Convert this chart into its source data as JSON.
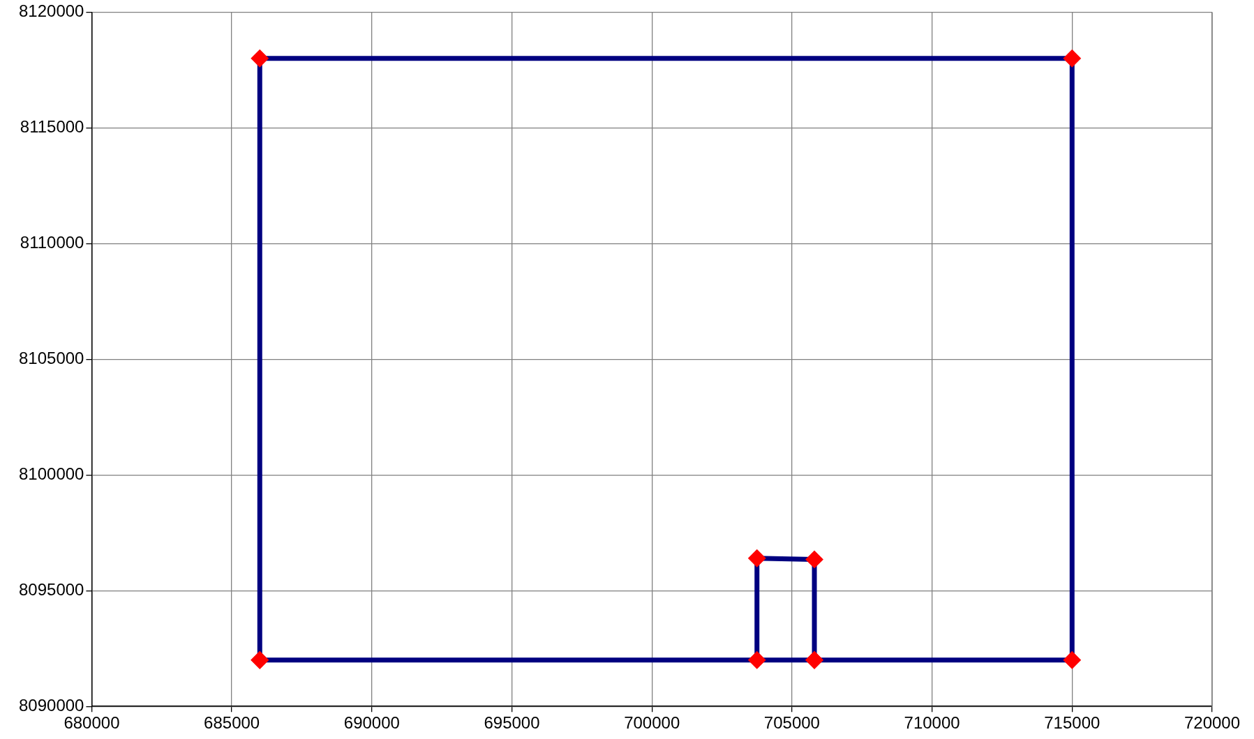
{
  "chart_data": {
    "type": "scatter",
    "line_style": "solid",
    "legend": false,
    "x": [
      686000,
      686000,
      715000,
      715000,
      705800,
      705800,
      703750,
      703750,
      705800,
      686000
    ],
    "series": [
      {
        "color": "#000080",
        "colors": [
          "#ff0000",
          "#ff0000",
          "#ff0000",
          "#ff0000",
          "#ff0000",
          "#ff0000",
          "#ff0000",
          "#ff0000",
          "#ff0000",
          "#ff0000"
        ],
        "values": [
          8092000,
          8118000,
          8118000,
          8092000,
          8092000,
          8096350,
          8096400,
          8092000,
          8092000,
          8092000
        ]
      }
    ],
    "marker": "diamond",
    "xlim": [
      680000,
      720000
    ],
    "xticks": [
      680000,
      685000,
      690000,
      695000,
      700000,
      705000,
      710000,
      715000,
      720000
    ],
    "ylim": [
      8090000,
      8120000
    ],
    "yticks": [
      8090000,
      8095000,
      8100000,
      8105000,
      8110000,
      8115000,
      8120000
    ],
    "grid": true
  }
}
